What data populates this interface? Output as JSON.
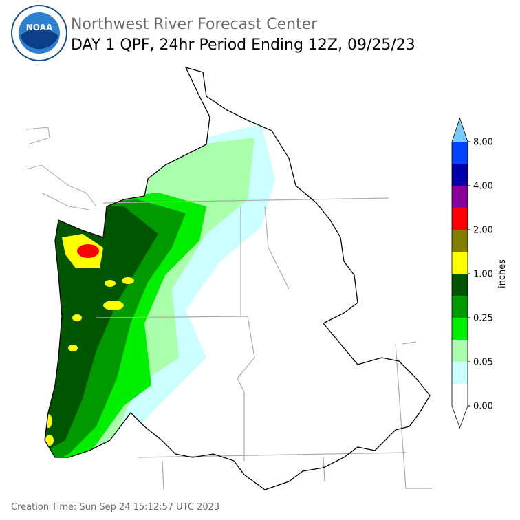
{
  "header": {
    "title": "Northwest River Forecast Center",
    "subtitle": "DAY 1 QPF, 24hr Period Ending 12Z, 09/25/23",
    "logo_text": "NOAA"
  },
  "colorbar": {
    "label": "inches",
    "ticks": [
      {
        "value": 0,
        "label": "0.00"
      },
      {
        "value": 0.05,
        "label": "0.05"
      },
      {
        "value": 0.25,
        "label": "0.25"
      },
      {
        "value": 1,
        "label": "1.00"
      },
      {
        "value": 2,
        "label": "2.00"
      },
      {
        "value": 4,
        "label": "4.00"
      },
      {
        "value": 8,
        "label": "8.00"
      }
    ],
    "colors": [
      "#ffffff",
      "#ccffff",
      "#aaffaa",
      "#00ee00",
      "#009900",
      "#005500",
      "#ffff00",
      "#807f00",
      "#ff0000",
      "#880099",
      "#0000aa",
      "#0044ff"
    ],
    "under_color": "#ffffff",
    "over_color": "#77ccff"
  },
  "footer": {
    "creation_time": "Creation Time: Sun Sep 24 15:12:57 UTC 2023"
  }
}
